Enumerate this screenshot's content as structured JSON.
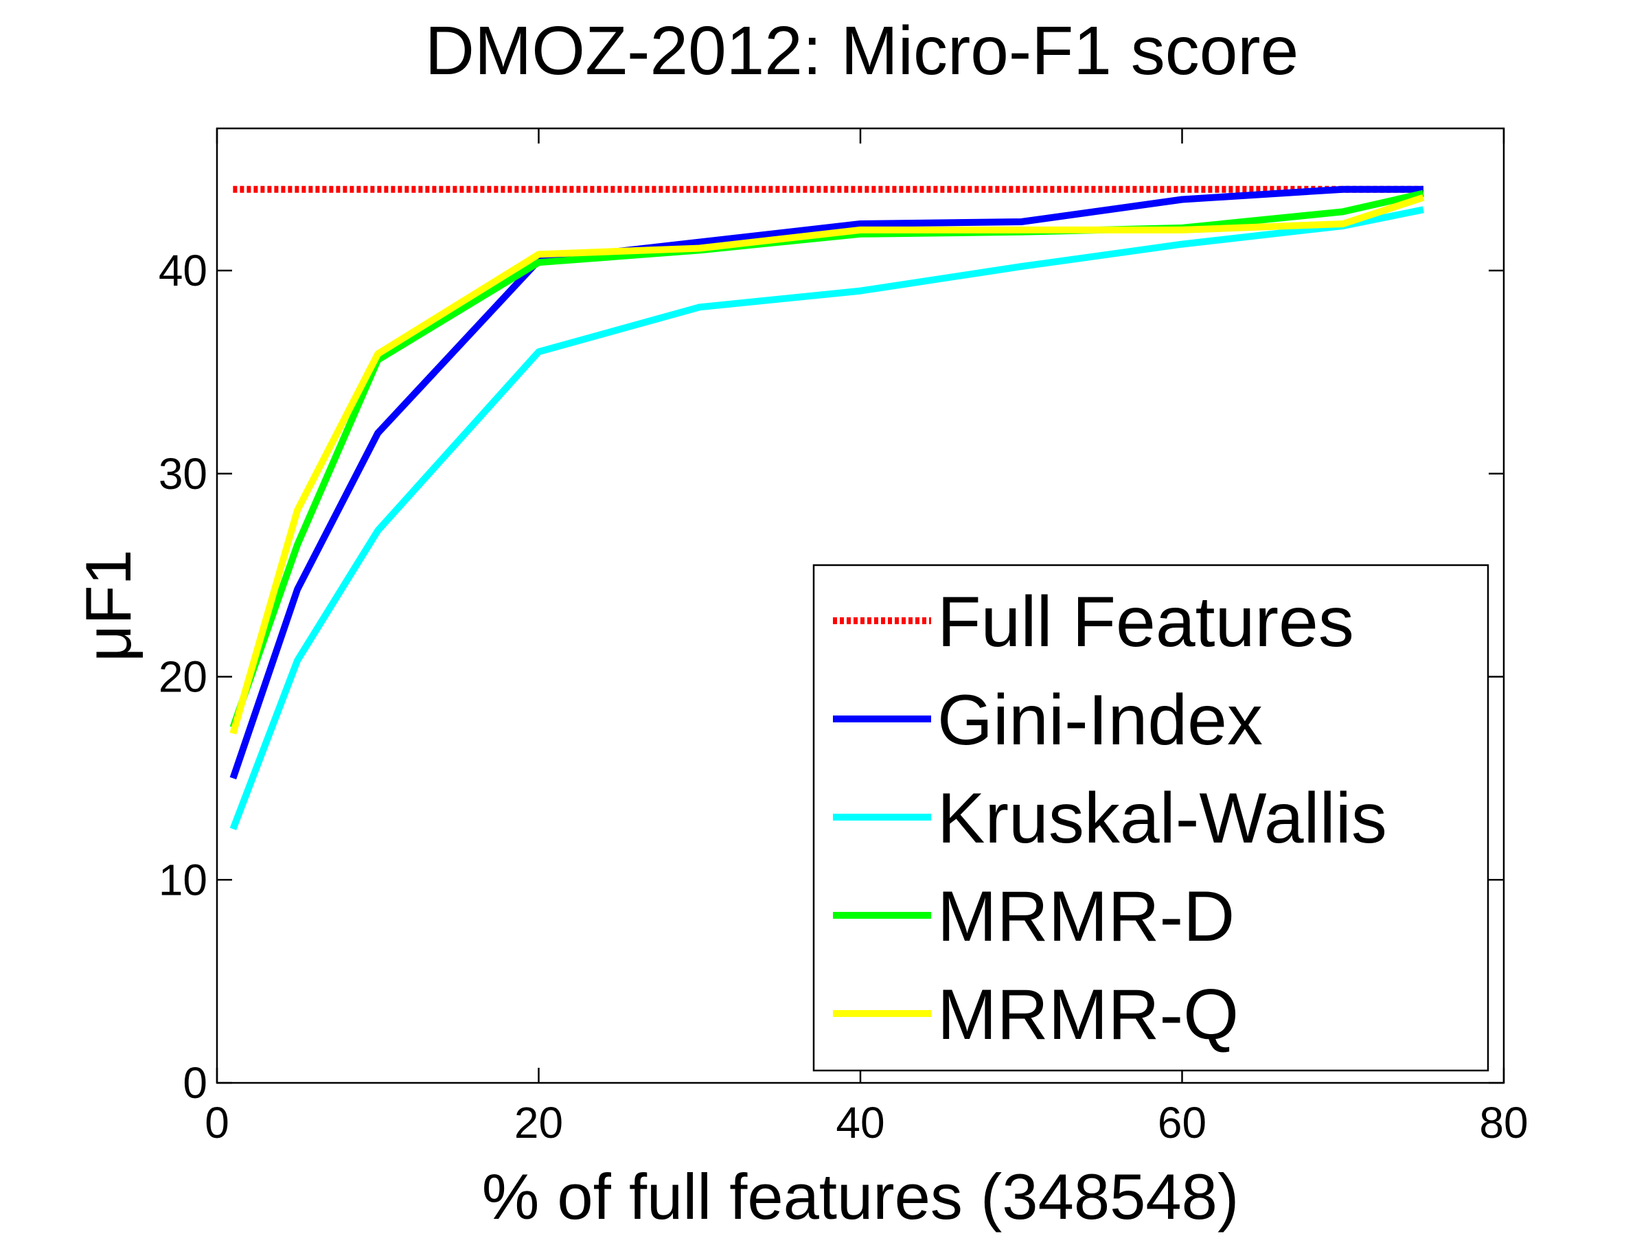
{
  "chart_data": {
    "type": "line",
    "title": "DMOZ-2012: Micro-F1 score",
    "xlabel": "% of full features (348548)",
    "ylabel": "μF1",
    "xlim": [
      0,
      80
    ],
    "ylim": [
      0,
      47
    ],
    "x_ticks": [
      0,
      20,
      40,
      60,
      80
    ],
    "y_ticks": [
      0,
      10,
      20,
      30,
      40
    ],
    "grid": false,
    "legend_position": "bottom-right",
    "series": [
      {
        "name": "Full Features",
        "color": "#ff0000",
        "dash": "dotted",
        "x": [
          1,
          75
        ],
        "y": [
          44,
          44
        ]
      },
      {
        "name": "Gini-Index",
        "color": "#0000ff",
        "dash": "solid",
        "x": [
          1,
          5,
          10,
          20,
          30,
          40,
          50,
          60,
          70,
          75
        ],
        "y": [
          15.0,
          24.3,
          32.0,
          40.5,
          41.4,
          42.3,
          42.4,
          43.5,
          44.0,
          44.0
        ]
      },
      {
        "name": "Kruskal-Wallis",
        "color": "#00ffff",
        "dash": "solid",
        "x": [
          1,
          5,
          10,
          20,
          30,
          40,
          50,
          60,
          70,
          75
        ],
        "y": [
          12.5,
          20.8,
          27.2,
          36.0,
          38.2,
          39.0,
          40.2,
          41.3,
          42.2,
          43.0
        ]
      },
      {
        "name": "MRMR-D",
        "color": "#00ff00",
        "dash": "solid",
        "x": [
          1,
          5,
          10,
          20,
          30,
          40,
          50,
          60,
          70,
          75
        ],
        "y": [
          17.5,
          26.5,
          35.6,
          40.4,
          41.0,
          41.8,
          41.9,
          42.1,
          42.9,
          43.8
        ]
      },
      {
        "name": "MRMR-Q",
        "color": "#ffff00",
        "dash": "solid",
        "x": [
          1,
          5,
          10,
          20,
          30,
          40,
          50,
          60,
          70,
          75
        ],
        "y": [
          17.2,
          28.2,
          35.9,
          40.8,
          41.1,
          42.0,
          42.0,
          42.0,
          42.3,
          43.6
        ]
      }
    ]
  }
}
